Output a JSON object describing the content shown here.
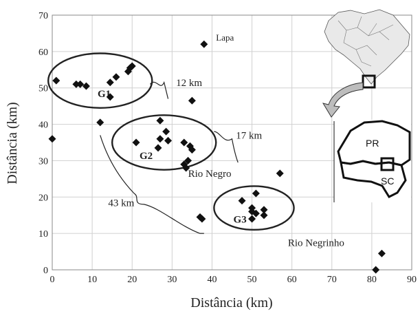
{
  "chart_data": {
    "type": "scatter",
    "xlabel": "Distância (km)",
    "ylabel": "Distância (km)",
    "xlim": [
      0,
      90
    ],
    "ylim": [
      0,
      70
    ],
    "xticks": [
      "0",
      "10",
      "20",
      "30",
      "40",
      "50",
      "60",
      "70",
      "80",
      "90"
    ],
    "yticks": [
      "0",
      "10",
      "20",
      "30",
      "40",
      "50",
      "60",
      "70"
    ],
    "grid": true,
    "points": [
      {
        "x": 0,
        "y": 36
      },
      {
        "x": 1,
        "y": 52
      },
      {
        "x": 6,
        "y": 51
      },
      {
        "x": 7,
        "y": 51
      },
      {
        "x": 8.5,
        "y": 50.5
      },
      {
        "x": 12,
        "y": 40.5
      },
      {
        "x": 14.5,
        "y": 51.5
      },
      {
        "x": 14.5,
        "y": 47.5
      },
      {
        "x": 16,
        "y": 53
      },
      {
        "x": 19,
        "y": 54.5
      },
      {
        "x": 19.5,
        "y": 55.5
      },
      {
        "x": 20,
        "y": 56
      },
      {
        "x": 38,
        "y": 62
      },
      {
        "x": 21,
        "y": 35
      },
      {
        "x": 26.5,
        "y": 33.5
      },
      {
        "x": 27,
        "y": 41
      },
      {
        "x": 27,
        "y": 36
      },
      {
        "x": 28.5,
        "y": 38
      },
      {
        "x": 29,
        "y": 35.5
      },
      {
        "x": 33,
        "y": 35
      },
      {
        "x": 33,
        "y": 29
      },
      {
        "x": 33.5,
        "y": 28
      },
      {
        "x": 34,
        "y": 30
      },
      {
        "x": 34.5,
        "y": 34
      },
      {
        "x": 35,
        "y": 33
      },
      {
        "x": 35,
        "y": 46.5
      },
      {
        "x": 37,
        "y": 14.5
      },
      {
        "x": 37.5,
        "y": 14
      },
      {
        "x": 47.5,
        "y": 19
      },
      {
        "x": 50,
        "y": 17
      },
      {
        "x": 50,
        "y": 16
      },
      {
        "x": 50,
        "y": 14
      },
      {
        "x": 51,
        "y": 21
      },
      {
        "x": 51,
        "y": 15.5
      },
      {
        "x": 53,
        "y": 16.5
      },
      {
        "x": 53,
        "y": 15
      },
      {
        "x": 57,
        "y": 26.5
      },
      {
        "x": 81,
        "y": 0
      },
      {
        "x": 82.5,
        "y": 4.5
      }
    ],
    "groups": [
      {
        "label": "G1",
        "cx": 12,
        "cy": 52,
        "rx": 13,
        "ry": 7.5
      },
      {
        "label": "G2",
        "cx": 28,
        "cy": 35,
        "rx": 13,
        "ry": 7.5
      },
      {
        "label": "G3",
        "cx": 50.5,
        "cy": 17,
        "rx": 10,
        "ry": 6
      }
    ],
    "place_labels": [
      {
        "text": "Lapa",
        "x": 41,
        "y": 63
      },
      {
        "text": "Rio Negro",
        "x": 34,
        "y": 25.5
      },
      {
        "text": "Rio Negrinho",
        "x": 59,
        "y": 6.5
      }
    ],
    "distance_labels": [
      {
        "text": "12 km",
        "x": 31,
        "y": 50.5
      },
      {
        "text": "17 km",
        "x": 46,
        "y": 36
      },
      {
        "text": "43 km",
        "x": 14,
        "y": 17.5
      }
    ],
    "inset": {
      "labels": [
        "PR",
        "SC"
      ]
    }
  }
}
